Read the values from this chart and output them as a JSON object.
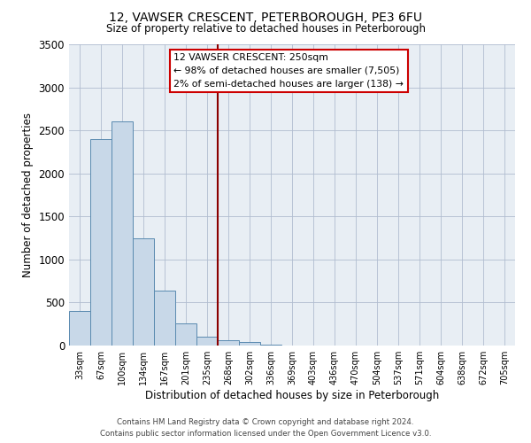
{
  "title": "12, VAWSER CRESCENT, PETERBOROUGH, PE3 6FU",
  "subtitle": "Size of property relative to detached houses in Peterborough",
  "xlabel": "Distribution of detached houses by size in Peterborough",
  "ylabel": "Number of detached properties",
  "bar_labels": [
    "33sqm",
    "67sqm",
    "100sqm",
    "134sqm",
    "167sqm",
    "201sqm",
    "235sqm",
    "268sqm",
    "302sqm",
    "336sqm",
    "369sqm",
    "403sqm",
    "436sqm",
    "470sqm",
    "504sqm",
    "537sqm",
    "571sqm",
    "604sqm",
    "638sqm",
    "672sqm",
    "705sqm"
  ],
  "bar_values": [
    400,
    2400,
    2600,
    1250,
    640,
    260,
    100,
    65,
    40,
    15,
    5,
    2,
    0,
    0,
    0,
    0,
    0,
    0,
    0,
    0,
    0
  ],
  "bar_color": "#c8d8e8",
  "bar_edge_color": "#5a8ab0",
  "property_line_x": 6.5,
  "property_line_color": "#8b0000",
  "ylim": [
    0,
    3500
  ],
  "yticks": [
    0,
    500,
    1000,
    1500,
    2000,
    2500,
    3000,
    3500
  ],
  "annotation_title": "12 VAWSER CRESCENT: 250sqm",
  "annotation_line1": "← 98% of detached houses are smaller (7,505)",
  "annotation_line2": "2% of semi-detached houses are larger (138) →",
  "annotation_box_color": "#ffffff",
  "annotation_box_edge": "#cc0000",
  "footer_line1": "Contains HM Land Registry data © Crown copyright and database right 2024.",
  "footer_line2": "Contains public sector information licensed under the Open Government Licence v3.0.",
  "plot_background": "#e8eef4"
}
